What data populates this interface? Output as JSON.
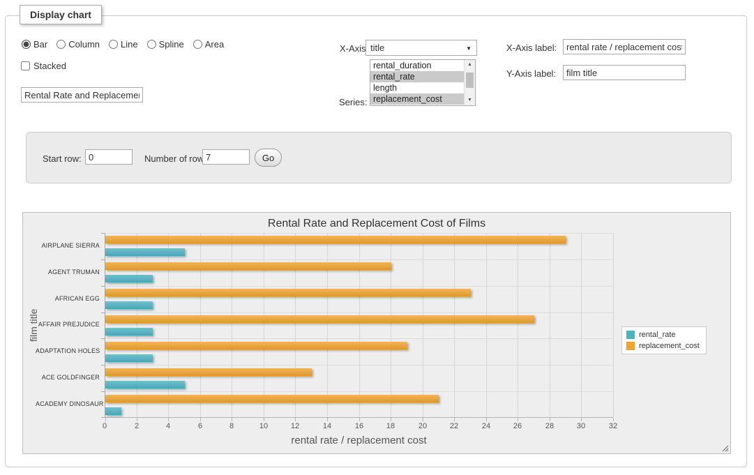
{
  "panel": {
    "legend": "Display chart"
  },
  "chart_type": {
    "options": [
      {
        "label": "Bar",
        "checked": true
      },
      {
        "label": "Column",
        "checked": false
      },
      {
        "label": "Line",
        "checked": false
      },
      {
        "label": "Spline",
        "checked": false
      },
      {
        "label": "Area",
        "checked": false
      }
    ]
  },
  "stacked": {
    "label": "Stacked",
    "checked": false
  },
  "title_input": {
    "value": "Rental Rate and Replacement Cost of Films"
  },
  "x_axis_select": {
    "label": "X-Axis:",
    "selected": "title"
  },
  "series_select": {
    "label": "Series:",
    "options": [
      {
        "label": "rental_duration",
        "selected": false
      },
      {
        "label": "rental_rate",
        "selected": true
      },
      {
        "label": "length",
        "selected": false
      },
      {
        "label": "replacement_cost",
        "selected": true
      }
    ]
  },
  "x_axis_label_input": {
    "label": "X-Axis label:",
    "value": "rental rate / replacement cost"
  },
  "y_axis_label_input": {
    "label": "Y-Axis label:",
    "value": "film title"
  },
  "rows_panel": {
    "start_row_label": "Start row:",
    "start_row_value": "0",
    "number_of_rows_label": "Number of rows:",
    "number_of_rows_value": "7",
    "go_label": "Go"
  },
  "chart_data": {
    "type": "bar",
    "orientation": "horizontal",
    "title": "Rental Rate and Replacement Cost of Films",
    "categories": [
      "AIRPLANE SIERRA",
      "AGENT TRUMAN",
      "AFRICAN EGG",
      "AFFAIR PREJUDICE",
      "ADAPTATION HOLES",
      "ACE GOLDFINGER",
      "ACADEMY DINOSAUR"
    ],
    "series": [
      {
        "name": "rental_rate",
        "color": "#4FB2C4",
        "values": [
          4.99,
          2.99,
          2.99,
          2.99,
          2.99,
          4.99,
          0.99
        ]
      },
      {
        "name": "replacement_cost",
        "color": "#EFA42F",
        "values": [
          28.99,
          17.99,
          22.99,
          26.99,
          18.99,
          12.99,
          20.99
        ]
      }
    ],
    "bar_order_top_to_bottom": [
      "replacement_cost",
      "rental_rate"
    ],
    "xlabel": "rental rate / replacement cost",
    "ylabel": "film title",
    "xlim": [
      0,
      32
    ],
    "xticks": [
      0,
      2,
      4,
      6,
      8,
      10,
      12,
      14,
      16,
      18,
      20,
      22,
      24,
      26,
      28,
      30,
      32
    ],
    "grid": true,
    "legend_position": "right-middle",
    "plot_background": "#eeeeee"
  }
}
